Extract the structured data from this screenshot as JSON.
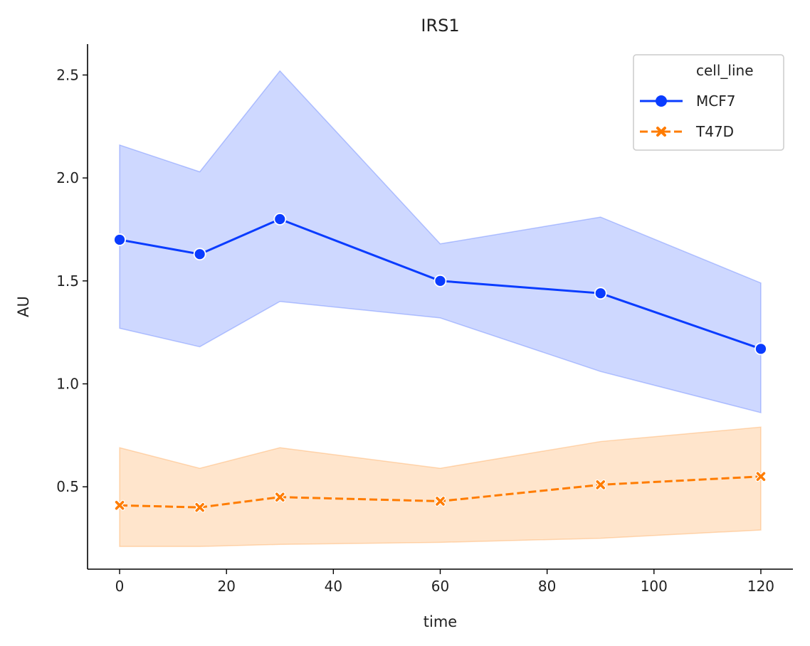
{
  "chart_data": {
    "type": "line",
    "title": "IRS1",
    "xlabel": "time",
    "ylabel": "AU",
    "xlim": [
      -6,
      126
    ],
    "ylim": [
      0.1,
      2.65
    ],
    "xticks": [
      0,
      20,
      40,
      60,
      80,
      100,
      120
    ],
    "yticks": [
      0.5,
      1.0,
      1.5,
      2.0,
      2.5
    ],
    "xtick_labels": [
      "0",
      "20",
      "40",
      "60",
      "80",
      "100",
      "120"
    ],
    "ytick_labels": [
      "0.5",
      "1.0",
      "1.5",
      "2.0",
      "2.5"
    ],
    "grid": false,
    "legend": {
      "title": "cell_line",
      "position": "top-right"
    },
    "x": [
      0,
      15,
      30,
      60,
      90,
      120
    ],
    "series": [
      {
        "name": "MCF7",
        "color": "#0a3cff",
        "marker": "circle",
        "dash": "solid",
        "values": [
          1.7,
          1.63,
          1.8,
          1.5,
          1.44,
          1.17
        ],
        "ci_upper": [
          2.16,
          2.03,
          2.52,
          1.68,
          1.81,
          1.49
        ],
        "ci_lower": [
          1.27,
          1.18,
          1.4,
          1.32,
          1.06,
          0.86
        ]
      },
      {
        "name": "T47D",
        "color": "#ff7c00",
        "marker": "x",
        "dash": "dashed",
        "values": [
          0.41,
          0.4,
          0.45,
          0.43,
          0.51,
          0.55
        ],
        "ci_upper": [
          0.69,
          0.59,
          0.69,
          0.59,
          0.72,
          0.79
        ],
        "ci_lower": [
          0.21,
          0.21,
          0.22,
          0.23,
          0.25,
          0.29
        ]
      }
    ]
  }
}
